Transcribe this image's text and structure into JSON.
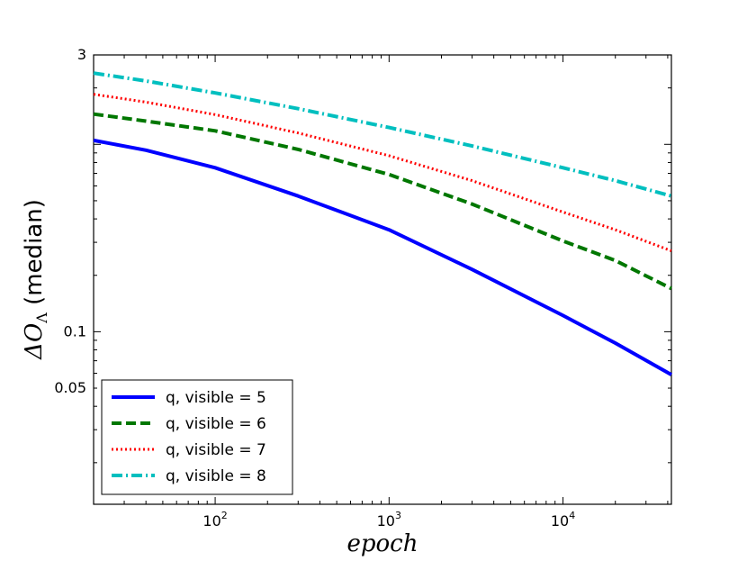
{
  "chart_data": {
    "type": "line",
    "title": "",
    "xlabel": "epoch",
    "ylabel": "ΔO_Λ (median)",
    "ylabel_prefix": "ΔO",
    "ylabel_subscript": "Λ",
    "ylabel_suffix": " (median)",
    "xscale": "log",
    "yscale": "log",
    "xlim": [
      20,
      42000
    ],
    "ylim": [
      0.012,
      3
    ],
    "xticks": [
      {
        "value": 100,
        "base": "10",
        "exp": "2"
      },
      {
        "value": 1000,
        "base": "10",
        "exp": "3"
      },
      {
        "value": 10000,
        "base": "10",
        "exp": "4"
      }
    ],
    "yticks": [
      {
        "value": 3,
        "label": "3"
      },
      {
        "value": 0.1,
        "label": "0.1"
      },
      {
        "value": 0.05,
        "label": "0.05"
      }
    ],
    "legend_position": "lower-left",
    "x": [
      20,
      40,
      100,
      300,
      1000,
      3000,
      10000,
      20000,
      42000
    ],
    "series": [
      {
        "name": "q, visible = 5",
        "color": "#0000ff",
        "style": "solid",
        "values": [
          1.05,
          0.93,
          0.75,
          0.53,
          0.35,
          0.215,
          0.122,
          0.087,
          0.059
        ]
      },
      {
        "name": "q, visible = 6",
        "color": "#007700",
        "style": "dashed",
        "values": [
          1.45,
          1.33,
          1.18,
          0.94,
          0.69,
          0.48,
          0.305,
          0.24,
          0.17
        ]
      },
      {
        "name": "q, visible = 7",
        "color": "#ff0000",
        "style": "dotted",
        "values": [
          1.85,
          1.68,
          1.44,
          1.15,
          0.87,
          0.64,
          0.435,
          0.35,
          0.27
        ]
      },
      {
        "name": "q, visible = 8",
        "color": "#00bfbf",
        "style": "dashdot",
        "values": [
          2.4,
          2.18,
          1.88,
          1.55,
          1.23,
          0.98,
          0.75,
          0.64,
          0.53
        ]
      }
    ]
  }
}
